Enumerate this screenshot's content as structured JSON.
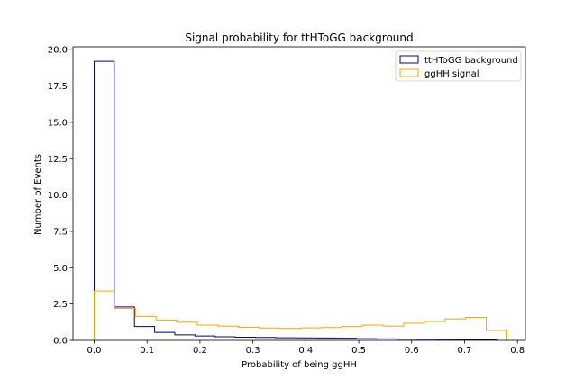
{
  "chart_data": {
    "type": "histogram-step",
    "title": "Signal probability for ttHToGG background",
    "xlabel": "Probability of being ggHH",
    "ylabel": "Number of Events",
    "xlim": [
      -0.04,
      0.815
    ],
    "ylim": [
      0,
      20.2
    ],
    "xticks": [
      0.0,
      0.1,
      0.2,
      0.3,
      0.4,
      0.5,
      0.6,
      0.7,
      0.8
    ],
    "xtick_labels": [
      "0.0",
      "0.1",
      "0.2",
      "0.3",
      "0.4",
      "0.5",
      "0.6",
      "0.7",
      "0.8"
    ],
    "yticks": [
      0.0,
      2.5,
      5.0,
      7.5,
      10.0,
      12.5,
      15.0,
      17.5,
      20.0
    ],
    "ytick_labels": [
      "0.0",
      "2.5",
      "5.0",
      "7.5",
      "10.0",
      "12.5",
      "15.0",
      "17.5",
      "20.0"
    ],
    "legend_position": "top-right",
    "series": [
      {
        "name": "ttHToGG background",
        "color": "#00008b",
        "bin_edges": [
          0.0,
          0.0381,
          0.0762,
          0.1143,
          0.1524,
          0.1905,
          0.2286,
          0.2667,
          0.3048,
          0.3429,
          0.381,
          0.4191,
          0.4572,
          0.4953,
          0.5334,
          0.5715,
          0.6096,
          0.6477,
          0.6858,
          0.7239,
          0.762
        ],
        "values": [
          19.2,
          2.3,
          0.95,
          0.55,
          0.38,
          0.3,
          0.25,
          0.22,
          0.2,
          0.18,
          0.17,
          0.16,
          0.15,
          0.12,
          0.1,
          0.08,
          0.07,
          0.06,
          0.05,
          0.04
        ]
      },
      {
        "name": "ggHH signal",
        "color": "#ffa500",
        "bin_edges": [
          0.0,
          0.039,
          0.078,
          0.117,
          0.156,
          0.195,
          0.234,
          0.273,
          0.312,
          0.351,
          0.39,
          0.429,
          0.468,
          0.507,
          0.546,
          0.585,
          0.624,
          0.663,
          0.702,
          0.741,
          0.78
        ],
        "values": [
          3.4,
          2.2,
          1.65,
          1.4,
          1.25,
          1.05,
          0.98,
          0.9,
          0.85,
          0.82,
          0.86,
          0.88,
          0.95,
          1.05,
          0.98,
          1.18,
          1.3,
          1.48,
          1.58,
          0.68
        ]
      }
    ]
  }
}
